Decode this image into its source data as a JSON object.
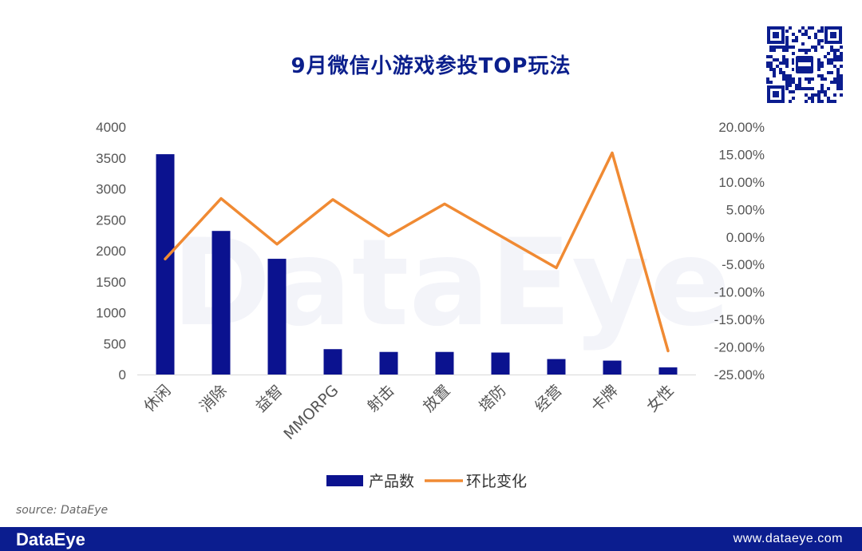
{
  "header": {
    "title": "9月微信小游戏参投TOP玩法"
  },
  "watermark": "DataEye",
  "chart_data": {
    "type": "bar",
    "categories": [
      "休闲",
      "消除",
      "益智",
      "MMORPG",
      "射击",
      "放置",
      "塔防",
      "经营",
      "卡牌",
      "女性"
    ],
    "series": [
      {
        "name": "产品数",
        "type": "bar",
        "axis": "left",
        "color": "#0b128f",
        "values": [
          3560,
          2320,
          1870,
          410,
          365,
          365,
          355,
          250,
          225,
          115
        ]
      },
      {
        "name": "环比变化",
        "type": "line",
        "axis": "right",
        "color": "#f08a33",
        "values": [
          -4.0,
          7.0,
          -1.3,
          6.8,
          0.2,
          6.0,
          0.2,
          -5.6,
          15.3,
          -20.7
        ]
      }
    ],
    "y_left": {
      "min": 0,
      "max": 4000,
      "ticks": [
        "0",
        "500",
        "1000",
        "1500",
        "2000",
        "2500",
        "3000",
        "3500",
        "4000"
      ]
    },
    "y_right": {
      "min": -25,
      "max": 20,
      "ticks": [
        "-25.00%",
        "-20.00%",
        "-15.00%",
        "-10.00%",
        "-5.00%",
        "0.00%",
        "5.00%",
        "10.00%",
        "15.00%",
        "20.00%"
      ]
    },
    "grid": false,
    "legend_position": "bottom"
  },
  "source": "source: DataEye",
  "footer": {
    "brand": "DataEye",
    "url": "www.dataeye.com"
  }
}
